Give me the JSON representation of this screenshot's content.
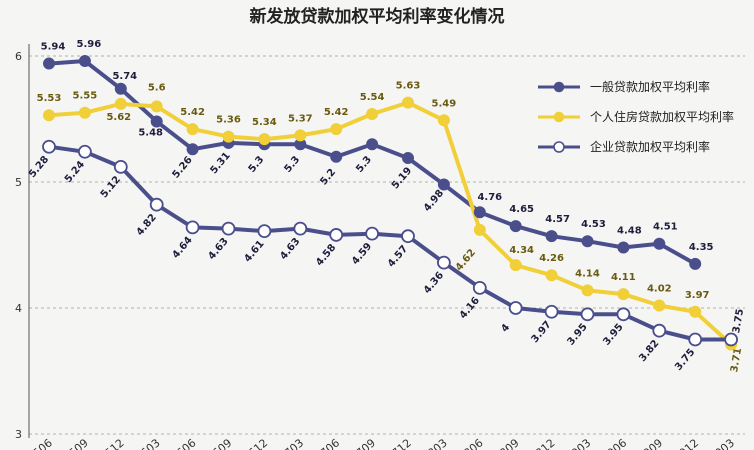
{
  "chart_data": {
    "type": "line",
    "title": "新发放贷款加权平均利率变化情况",
    "xlabel": "",
    "ylabel": "",
    "ylim": [
      3,
      6
    ],
    "yticks": [
      "3",
      "4",
      "5",
      "6"
    ],
    "x": [
      "1506",
      "1509",
      "1512",
      "1603",
      "1606",
      "1609",
      "1612",
      "1703",
      "1706",
      "1709",
      "1712",
      "1803",
      "1806",
      "1809",
      "1812",
      "1903",
      "1906",
      "1909",
      "1912",
      "2003"
    ],
    "grid": true,
    "legend_position": "top-right",
    "series": [
      {
        "name": "一般贷款加权平均利率",
        "color": "#4a4f8c",
        "marker": "filled-circle",
        "values": [
          5.94,
          5.96,
          5.74,
          5.48,
          5.26,
          5.31,
          5.3,
          5.3,
          5.2,
          5.3,
          5.19,
          4.98,
          4.76,
          4.65,
          4.57,
          4.53,
          4.48,
          4.51,
          4.35,
          null
        ],
        "labels": [
          "5.94",
          "5.96",
          "5.74",
          "5.48",
          "5.26",
          "5.31",
          "5.3",
          "5.3",
          "5.2",
          "5.3",
          "5.19",
          "4.98",
          "4.76",
          "4.65",
          "4.57",
          "4.53",
          "4.48",
          "4.51",
          "4.35",
          ""
        ]
      },
      {
        "name": "个人住房贷款加权平均利率",
        "color": "#f0cf38",
        "marker": "filled-circle",
        "values": [
          5.53,
          5.55,
          5.62,
          5.6,
          5.42,
          5.36,
          5.34,
          5.37,
          5.42,
          5.54,
          5.63,
          5.49,
          4.62,
          4.34,
          4.26,
          4.14,
          4.11,
          4.02,
          3.97,
          3.71
        ],
        "labels": [
          "5.53",
          "5.55",
          "5.62",
          "5.6",
          "5.42",
          "5.36",
          "5.34",
          "5.37",
          "5.42",
          "5.54",
          "5.63",
          "5.49",
          "4.62",
          "4.34",
          "4.26",
          "4.14",
          "4.11",
          "4.02",
          "3.97",
          "3.71"
        ]
      },
      {
        "name": "企业贷款加权平均利率",
        "color": "#4a4f8c",
        "marker": "hollow-circle",
        "values": [
          5.28,
          5.24,
          5.12,
          4.82,
          4.64,
          4.63,
          4.61,
          4.63,
          4.58,
          4.59,
          4.57,
          4.36,
          4.16,
          4,
          3.97,
          3.95,
          3.95,
          3.82,
          3.75,
          3.75
        ],
        "labels": [
          "5.28",
          "5.24",
          "5.12",
          "4.82",
          "4.64",
          "4.63",
          "4.61",
          "4.63",
          "4.58",
          "4.59",
          "4.57",
          "4.36",
          "4.16",
          "4",
          "3.97",
          "3.95",
          "3.95",
          "3.82",
          "3.75",
          "3.75"
        ]
      }
    ]
  }
}
